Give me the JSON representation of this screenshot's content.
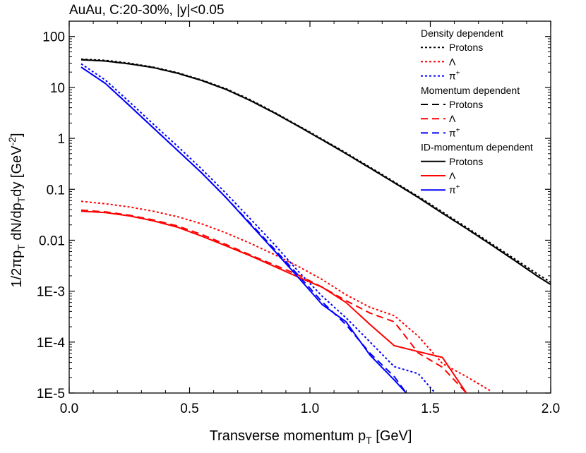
{
  "chart_data": {
    "type": "line",
    "title": "AuAu, C:20-30%, |y|<0.05",
    "xlabel": "Transverse momentum p",
    "xlabel_sub": "T",
    "xlabel_unit": " [GeV]",
    "ylabel": "1/2πp",
    "ylabel_sub1": "T",
    "ylabel_mid": " dN/dp",
    "ylabel_sub2": "T",
    "ylabel_tail": "dy [GeV",
    "ylabel_sup": "-2",
    "ylabel_end": "]",
    "xlim": [
      0.0,
      2.0
    ],
    "ylim": [
      1e-05,
      200
    ],
    "yscale": "log",
    "xticks": [
      0.0,
      0.5,
      1.0,
      1.5,
      2.0
    ],
    "xtick_labels": [
      "0.0",
      "0.5",
      "1.0",
      "1.5",
      "2.0"
    ],
    "yticks": [
      1e-05,
      0.0001,
      0.001,
      0.01,
      0.1,
      1,
      10,
      100
    ],
    "ytick_labels": [
      "1E-5",
      "1E-4",
      "1E-3",
      "0.01",
      "0.1",
      "1",
      "10",
      "100"
    ],
    "legend_position": "top-right",
    "legend": [
      {
        "type": "header",
        "text": "Density dependent"
      },
      {
        "type": "entry",
        "text": "Protons",
        "series": 0
      },
      {
        "type": "entry",
        "text": "Λ",
        "series": 1
      },
      {
        "type": "entry",
        "text": "π",
        "sup": "+",
        "series": 2
      },
      {
        "type": "header",
        "text": "Momentum dependent"
      },
      {
        "type": "entry",
        "text": "Protons",
        "series": 3
      },
      {
        "type": "entry",
        "text": "Λ",
        "series": 4
      },
      {
        "type": "entry",
        "text": "π",
        "sup": "+",
        "series": 5
      },
      {
        "type": "header",
        "text": "ID-momentum dependent"
      },
      {
        "type": "entry",
        "text": "Protons",
        "series": 6
      },
      {
        "type": "entry",
        "text": "Λ",
        "series": 7
      },
      {
        "type": "entry",
        "text": "π",
        "sup": "+",
        "series": 8
      }
    ],
    "series": [
      {
        "color": "#000000",
        "style": "dotted",
        "x": [
          0.05,
          0.15,
          0.25,
          0.35,
          0.45,
          0.55,
          0.65,
          0.75,
          0.85,
          0.95,
          1.05,
          1.15,
          1.25,
          1.35,
          1.45,
          1.55,
          1.65,
          1.75,
          1.85,
          1.95,
          2.0
        ],
        "y": [
          36,
          34,
          30,
          25,
          19.5,
          14,
          9.5,
          5.8,
          3.3,
          1.8,
          0.97,
          0.52,
          0.27,
          0.14,
          0.072,
          0.036,
          0.018,
          0.0088,
          0.0043,
          0.0021,
          0.0015
        ]
      },
      {
        "color": "#ff0000",
        "style": "dotted",
        "x": [
          0.05,
          0.15,
          0.25,
          0.35,
          0.45,
          0.55,
          0.65,
          0.75,
          0.85,
          0.95,
          1.05,
          1.15,
          1.25,
          1.35,
          1.45,
          1.55,
          1.65,
          1.75
        ],
        "y": [
          0.058,
          0.052,
          0.045,
          0.037,
          0.029,
          0.021,
          0.014,
          0.0088,
          0.0053,
          0.0031,
          0.0017,
          0.00085,
          0.00048,
          0.00033,
          0.00013,
          3.8e-05,
          2.1e-05,
          1.1e-05
        ]
      },
      {
        "color": "#0000ff",
        "style": "dotted",
        "x": [
          0.05,
          0.15,
          0.25,
          0.35,
          0.45,
          0.55,
          0.65,
          0.75,
          0.85,
          0.95,
          1.05,
          1.15,
          1.25,
          1.35,
          1.45,
          1.52
        ],
        "y": [
          29,
          14,
          5.2,
          1.9,
          0.7,
          0.25,
          0.085,
          0.027,
          0.0085,
          0.0025,
          0.0008,
          0.0003,
          0.0001,
          3.3e-05,
          2.4e-05,
          1e-05
        ]
      },
      {
        "color": "#000000",
        "style": "dashed",
        "x": [
          0.05,
          0.15,
          0.25,
          0.35,
          0.45,
          0.55,
          0.65,
          0.75,
          0.85,
          0.95,
          1.05,
          1.15,
          1.25,
          1.35,
          1.45,
          1.55,
          1.65,
          1.75,
          1.85,
          1.95,
          2.0
        ],
        "y": [
          35,
          33,
          29,
          24.5,
          19,
          13.7,
          9.2,
          5.6,
          3.2,
          1.75,
          0.94,
          0.5,
          0.26,
          0.135,
          0.069,
          0.034,
          0.017,
          0.0083,
          0.004,
          0.0019,
          0.00135
        ]
      },
      {
        "color": "#ff0000",
        "style": "dashed",
        "x": [
          0.05,
          0.15,
          0.25,
          0.35,
          0.45,
          0.55,
          0.65,
          0.75,
          0.85,
          0.95,
          1.05,
          1.15,
          1.25,
          1.35,
          1.45,
          1.55,
          1.65
        ],
        "y": [
          0.039,
          0.036,
          0.031,
          0.025,
          0.019,
          0.013,
          0.0083,
          0.0052,
          0.0033,
          0.0021,
          0.0012,
          0.00065,
          0.00037,
          0.00025,
          6.1e-05,
          3.2e-05,
          1e-05
        ]
      },
      {
        "color": "#0000ff",
        "style": "dashed",
        "x": [
          0.05,
          0.15,
          0.25,
          0.35,
          0.45,
          0.55,
          0.65,
          0.75,
          0.85,
          0.95,
          1.05,
          1.15,
          1.25,
          1.35,
          1.4
        ],
        "y": [
          25,
          12,
          4.4,
          1.6,
          0.58,
          0.21,
          0.07,
          0.022,
          0.0069,
          0.0021,
          0.00062,
          0.00022,
          6e-05,
          2.1e-05,
          1e-05
        ]
      },
      {
        "color": "#000000",
        "style": "solid",
        "x": [
          0.05,
          0.15,
          0.25,
          0.35,
          0.45,
          0.55,
          0.65,
          0.75,
          0.85,
          0.95,
          1.05,
          1.15,
          1.25,
          1.35,
          1.45,
          1.55,
          1.65,
          1.75,
          1.85,
          1.95,
          2.0
        ],
        "y": [
          35,
          33,
          29,
          24.5,
          19,
          13.7,
          9.2,
          5.6,
          3.2,
          1.75,
          0.94,
          0.5,
          0.26,
          0.135,
          0.069,
          0.034,
          0.017,
          0.0083,
          0.004,
          0.0019,
          0.00135
        ]
      },
      {
        "color": "#ff0000",
        "style": "solid",
        "x": [
          0.05,
          0.15,
          0.25,
          0.35,
          0.45,
          0.55,
          0.65,
          0.75,
          0.85,
          0.95,
          1.05,
          1.15,
          1.25,
          1.35,
          1.45,
          1.55,
          1.65
        ],
        "y": [
          0.037,
          0.035,
          0.03,
          0.024,
          0.018,
          0.012,
          0.0078,
          0.005,
          0.0031,
          0.0019,
          0.0012,
          0.0006,
          0.00022,
          8.5e-05,
          6.5e-05,
          5e-05,
          1e-05
        ]
      },
      {
        "color": "#0000ff",
        "style": "solid",
        "x": [
          0.05,
          0.15,
          0.25,
          0.35,
          0.45,
          0.55,
          0.65,
          0.75,
          0.85,
          0.95,
          1.05,
          1.15,
          1.25,
          1.35,
          1.4
        ],
        "y": [
          25,
          12,
          4.4,
          1.6,
          0.58,
          0.21,
          0.07,
          0.021,
          0.0064,
          0.0019,
          0.00055,
          0.00025,
          5.5e-05,
          1.8e-05,
          1e-05
        ]
      }
    ]
  }
}
